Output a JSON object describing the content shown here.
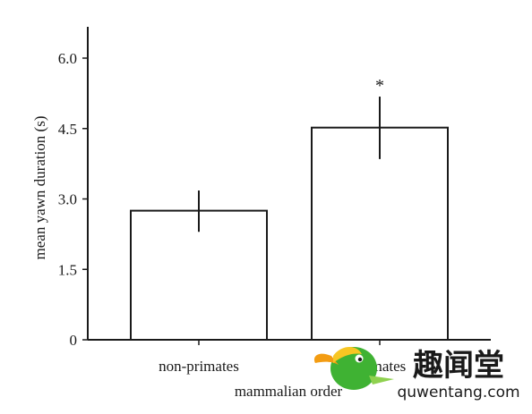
{
  "chart_data": {
    "type": "bar",
    "title": "",
    "xlabel": "mammalian order",
    "ylabel": "mean yawn duration (s)",
    "ylim": [
      0,
      6.5
    ],
    "yticks": [
      0,
      1.5,
      3.0,
      4.5,
      6.0
    ],
    "ytick_labels": [
      "0",
      "1.5",
      "3.0",
      "4.5",
      "6.0"
    ],
    "categories": [
      "non-primates",
      "primates"
    ],
    "values": [
      2.75,
      4.52
    ],
    "error_low": [
      2.3,
      3.85
    ],
    "error_high": [
      3.18,
      5.18
    ],
    "annotations": [
      "",
      "*"
    ],
    "grid": false,
    "legend": "none",
    "bar_fill": "#ffffff",
    "bar_stroke": "#1a1a1a"
  },
  "watermark": {
    "text_cn": "趣闻堂",
    "url": "quwentang.com",
    "primary_color": "#3fb233",
    "secondary_color": "#f39c12"
  }
}
